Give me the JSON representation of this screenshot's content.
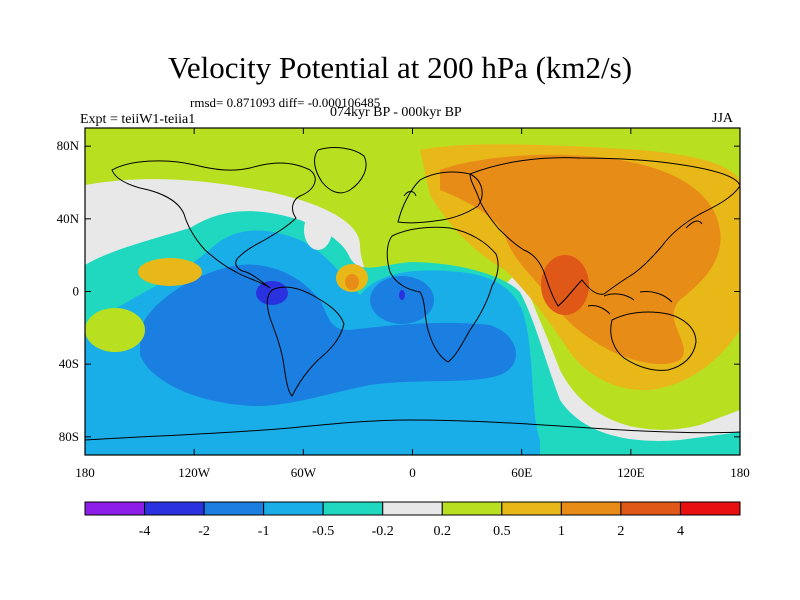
{
  "title": "Velocity Potential at 200 hPa (km2/s)",
  "stats": "rmsd= 0.871093 diff= -0.000106485",
  "period": "074kyr BP - 000kyr BP",
  "experiment": "Expt = teiiW1-teiia1",
  "season": "JJA",
  "map": {
    "lon_range": [
      -180,
      180
    ],
    "lat_range": [
      -90,
      90
    ],
    "lon_ticks": [
      "180",
      "120W",
      "60W",
      "0",
      "60E",
      "120E",
      "180"
    ],
    "lat_ticks": [
      "80N",
      "40N",
      "0",
      "40S",
      "80S"
    ]
  },
  "colorbar": {
    "colors": [
      "#8c1ee8",
      "#2a32e0",
      "#1a7fe0",
      "#1aaee8",
      "#20d8c0",
      "#e8e8e8",
      "#b8e020",
      "#e8b818",
      "#e88c18",
      "#e05818",
      "#e81010"
    ],
    "labels": [
      "-4",
      "-2",
      "-1",
      "-0.5",
      "-0.2",
      "0.2",
      "0.5",
      "1",
      "2",
      "4"
    ]
  },
  "palette": {
    "strong_negative": "#2a32e0",
    "negative": "#1a7fe0",
    "weak_negative": "#1aaee8",
    "slight_negative": "#20d8c0",
    "neutral": "#e8e8e8",
    "slight_positive": "#b8e020",
    "positive": "#e8b818",
    "moderate_positive": "#e88c18",
    "strong_positive": "#e05818"
  }
}
